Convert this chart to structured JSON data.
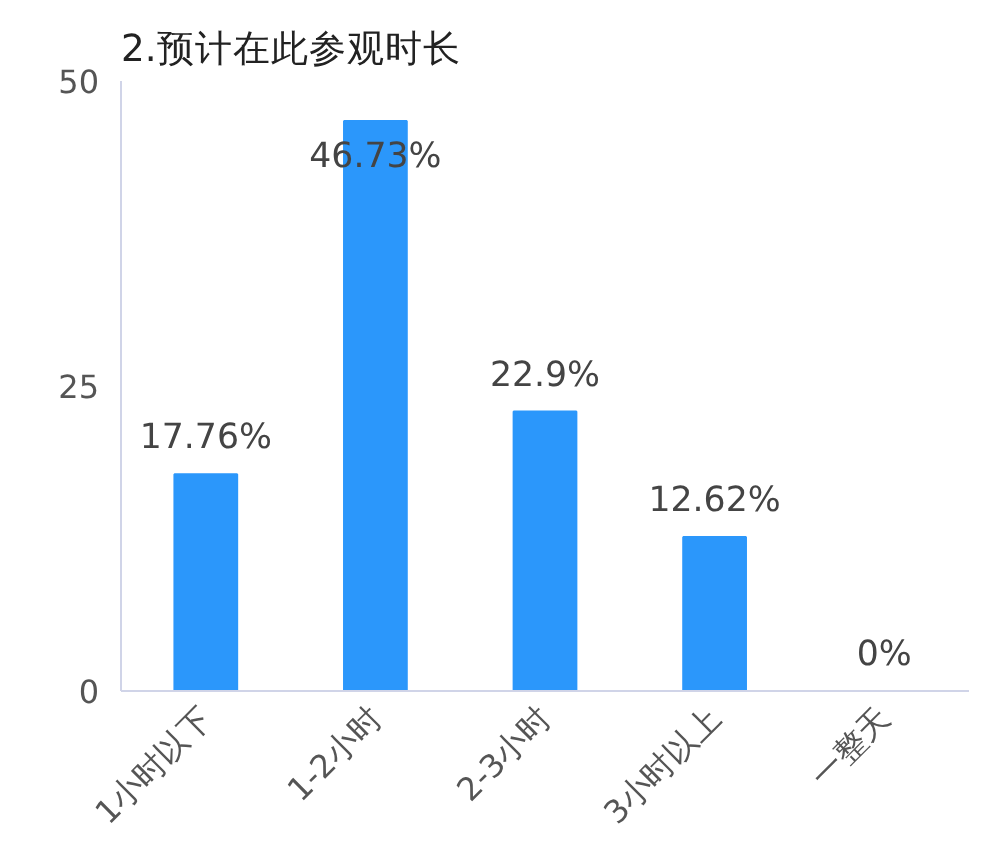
{
  "chart_data": {
    "type": "bar",
    "title": "2.预计在此参观时长",
    "categories": [
      "1小时以下",
      "1-2小时",
      "2-3小时",
      "3小时以上",
      "一整天"
    ],
    "values": [
      17.76,
      46.73,
      22.9,
      12.62,
      0
    ],
    "value_labels": [
      "17.76%",
      "46.73%",
      "22.9%",
      "12.62%",
      "0%"
    ],
    "color": "#2b97fb",
    "ylim": [
      0,
      50
    ],
    "yticks": [
      0,
      25,
      50
    ],
    "grid": false
  }
}
